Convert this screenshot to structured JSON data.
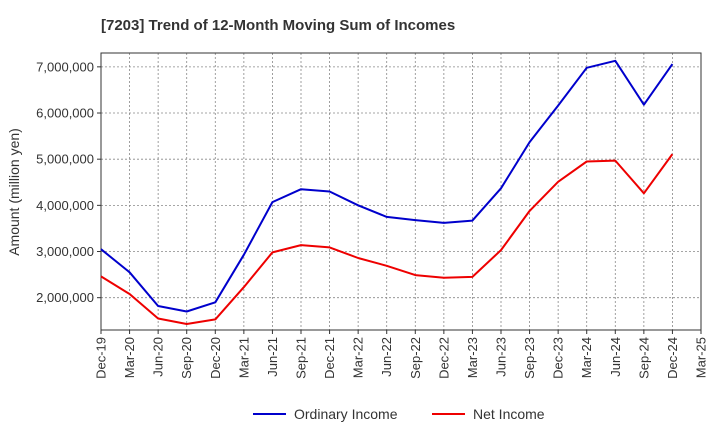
{
  "chart_data": {
    "type": "line",
    "title": "[7203]  Trend of 12-Month Moving Sum of Incomes",
    "xlabel": "",
    "ylabel": "Amount (million yen)",
    "ylim": [
      1300000,
      7300000
    ],
    "yticks": [
      2000000,
      3000000,
      4000000,
      5000000,
      6000000,
      7000000
    ],
    "ytick_labels": [
      "2,000,000",
      "3,000,000",
      "4,000,000",
      "5,000,000",
      "6,000,000",
      "7,000,000"
    ],
    "categories": [
      "Dec-19",
      "Mar-20",
      "Jun-20",
      "Sep-20",
      "Dec-20",
      "Mar-21",
      "Jun-21",
      "Sep-21",
      "Dec-21",
      "Mar-22",
      "Jun-22",
      "Sep-22",
      "Dec-22",
      "Mar-23",
      "Jun-23",
      "Sep-23",
      "Dec-23",
      "Mar-24",
      "Jun-24",
      "Sep-24",
      "Dec-24",
      "Mar-25"
    ],
    "grid": true,
    "legend_position": "bottom",
    "series": [
      {
        "name": "Ordinary Income",
        "color": "#0000cc",
        "values": [
          3050000,
          2550000,
          1820000,
          1700000,
          1900000,
          2930000,
          4070000,
          4350000,
          4300000,
          4000000,
          3750000,
          3680000,
          3620000,
          3670000,
          4370000,
          5370000,
          6160000,
          6980000,
          7130000,
          6180000,
          7060000,
          null
        ]
      },
      {
        "name": "Net Income",
        "color": "#ee0000",
        "values": [
          2460000,
          2080000,
          1550000,
          1430000,
          1530000,
          2230000,
          2980000,
          3140000,
          3090000,
          2860000,
          2690000,
          2490000,
          2430000,
          2450000,
          3030000,
          3880000,
          4510000,
          4950000,
          4970000,
          4260000,
          5110000,
          null
        ]
      }
    ]
  }
}
